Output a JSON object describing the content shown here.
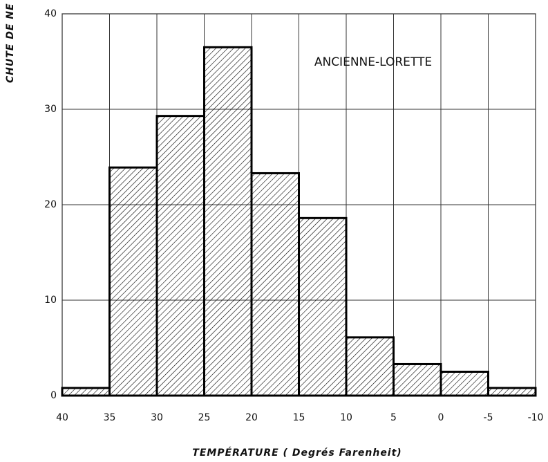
{
  "chart_data": {
    "type": "histogram",
    "y_label": "CHUTE DE NE",
    "x_label": "TEMPÉRATURE ( Degrés Farenheit)",
    "annotation": "ANCIENNE-LORETTE",
    "bins": [
      40,
      35,
      30,
      25,
      20,
      15,
      10,
      5,
      0,
      -5,
      -10
    ],
    "values": [
      0.8,
      23.9,
      29.3,
      36.5,
      23.3,
      18.6,
      6.1,
      3.3,
      2.5,
      0.8
    ],
    "xlim": [
      40,
      -10
    ],
    "xticks": [
      40,
      35,
      30,
      25,
      20,
      15,
      10,
      5,
      0,
      -5,
      -10
    ],
    "ylim": [
      0,
      40
    ],
    "yticks": [
      0,
      10,
      20,
      30,
      40
    ],
    "grid": true,
    "color": "#000000"
  }
}
